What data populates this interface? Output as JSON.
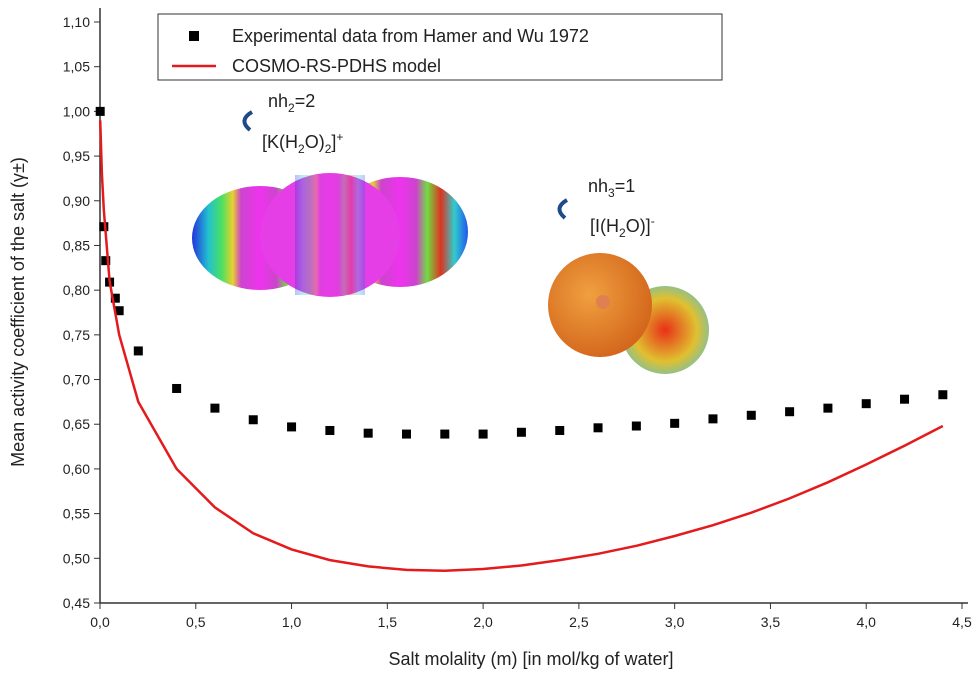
{
  "chart_data": {
    "type": "scatter",
    "x_label": "Salt molality (m) [in mol/kg of water]",
    "y_label": "Mean activity coefficient of the salt (γ±)",
    "xlim": [
      0,
      4.5
    ],
    "ylim": [
      0.45,
      1.1
    ],
    "xticks": [
      {
        "value": 0,
        "label": "0,0"
      },
      {
        "value": 0.5,
        "label": "0,5"
      },
      {
        "value": 1,
        "label": "1,0"
      },
      {
        "value": 1.5,
        "label": "1,5"
      },
      {
        "value": 2,
        "label": "2,0"
      },
      {
        "value": 2.5,
        "label": "2,5"
      },
      {
        "value": 3,
        "label": "3,0"
      },
      {
        "value": 3.5,
        "label": "3,5"
      },
      {
        "value": 4,
        "label": "4,0"
      },
      {
        "value": 4.5,
        "label": "4,5"
      }
    ],
    "yticks": [
      {
        "value": 0.45,
        "label": "0,45"
      },
      {
        "value": 0.5,
        "label": "0,50"
      },
      {
        "value": 0.55,
        "label": "0,55"
      },
      {
        "value": 0.6,
        "label": "0,60"
      },
      {
        "value": 0.65,
        "label": "0,65"
      },
      {
        "value": 0.7,
        "label": "0,70"
      },
      {
        "value": 0.75,
        "label": "0,75"
      },
      {
        "value": 0.8,
        "label": "0,80"
      },
      {
        "value": 0.85,
        "label": "0,85"
      },
      {
        "value": 0.9,
        "label": "0,90"
      },
      {
        "value": 0.95,
        "label": "0,95"
      },
      {
        "value": 1.0,
        "label": "1,00"
      },
      {
        "value": 1.05,
        "label": "1,05"
      },
      {
        "value": 1.1,
        "label": "1,10"
      }
    ],
    "series": [
      {
        "name": "Experimental data from Hamer and Wu 1972",
        "type": "scatter",
        "color": "#000000",
        "x": [
          0.001,
          0.02,
          0.03,
          0.05,
          0.08,
          0.1,
          0.2,
          0.4,
          0.6,
          0.8,
          1.0,
          1.2,
          1.4,
          1.6,
          1.8,
          2.0,
          2.2,
          2.4,
          2.6,
          2.8,
          3.0,
          3.2,
          3.4,
          3.6,
          3.8,
          4.0,
          4.2,
          4.4
        ],
        "values": [
          1.0,
          0.871,
          0.833,
          0.809,
          0.791,
          0.777,
          0.732,
          0.69,
          0.668,
          0.655,
          0.647,
          0.643,
          0.64,
          0.639,
          0.639,
          0.639,
          0.641,
          0.643,
          0.646,
          0.648,
          0.651,
          0.656,
          0.66,
          0.664,
          0.668,
          0.673,
          0.678,
          0.683
        ]
      },
      {
        "name": "COSMO-RS-PDHS model",
        "type": "line",
        "color": "#e41a1c",
        "x": [
          0.001,
          0.01,
          0.02,
          0.05,
          0.1,
          0.2,
          0.4,
          0.6,
          0.8,
          1.0,
          1.2,
          1.4,
          1.6,
          1.8,
          2.0,
          2.2,
          2.4,
          2.6,
          2.8,
          3.0,
          3.2,
          3.4,
          3.6,
          3.8,
          4.0,
          4.2,
          4.4
        ],
        "values": [
          0.99,
          0.93,
          0.89,
          0.81,
          0.75,
          0.675,
          0.6,
          0.557,
          0.528,
          0.51,
          0.498,
          0.491,
          0.487,
          0.486,
          0.488,
          0.492,
          0.498,
          0.505,
          0.514,
          0.525,
          0.537,
          0.551,
          0.567,
          0.585,
          0.605,
          0.626,
          0.648
        ]
      }
    ],
    "annotations": [
      {
        "parts": [
          "nh",
          "2",
          "=2"
        ],
        "formula": [
          "[K(H",
          "2",
          "O)",
          "2",
          "]",
          "+"
        ]
      },
      {
        "parts": [
          "nh",
          "3",
          "=1"
        ],
        "formula": [
          "[I(H",
          "2",
          "O)]",
          "-"
        ]
      }
    ]
  }
}
